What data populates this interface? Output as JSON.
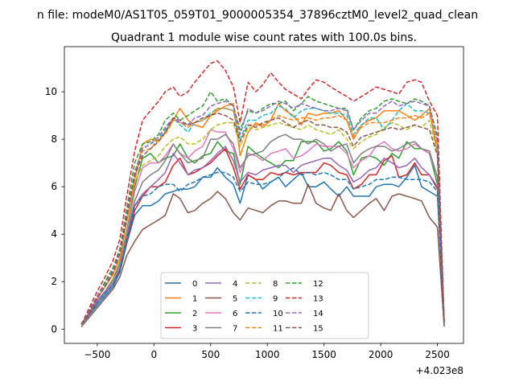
{
  "chart_data": {
    "type": "line",
    "suptitle": "n file: modeM0/AS1T05_059T01_9000005354_37896cztM0_level2_quad_clean",
    "title": "Quadrant 1 module wise count rates with 100.0s bins.",
    "xlabel": "",
    "ylabel": "",
    "x_offset_label": "+4.023e8",
    "xlim": [
      -790,
      2730
    ],
    "ylim": [
      -0.6,
      11.9
    ],
    "xticks": [
      -500,
      0,
      500,
      1000,
      1500,
      2000,
      2500
    ],
    "xtick_labels": [
      "−500",
      "0",
      "500",
      "1000",
      "1500",
      "2000",
      "2500"
    ],
    "yticks": [
      0,
      2,
      4,
      6,
      8,
      10
    ],
    "ytick_labels": [
      "0",
      "2",
      "4",
      "6",
      "8",
      "10"
    ],
    "grid": false,
    "legend_position": "lower-center",
    "legend_columns": 4,
    "x": [
      -640,
      -570,
      -500,
      -430,
      -360,
      -300,
      -240,
      -170,
      -100,
      -30,
      40,
      100,
      170,
      230,
      300,
      360,
      430,
      500,
      560,
      630,
      700,
      760,
      830,
      900,
      960,
      1030,
      1100,
      1160,
      1230,
      1300,
      1360,
      1430,
      1500,
      1560,
      1630,
      1700,
      1760,
      1830,
      1900,
      1960,
      2030,
      2100,
      2160,
      2230,
      2300,
      2360,
      2430,
      2500,
      2560
    ],
    "series": [
      {
        "name": "0",
        "color": "#1f77b4",
        "dash": "solid",
        "values": [
          0.2,
          0.6,
          1.0,
          1.4,
          1.8,
          2.4,
          3.6,
          4.8,
          5.2,
          5.2,
          5.4,
          5.7,
          5.8,
          5.9,
          5.9,
          6.0,
          6.4,
          6.4,
          6.8,
          6.4,
          6.1,
          5.3,
          6.5,
          6.3,
          5.9,
          6.2,
          6.4,
          6.0,
          6.3,
          6.6,
          6.0,
          6.0,
          6.2,
          5.9,
          5.6,
          6.0,
          5.6,
          5.6,
          5.6,
          6.0,
          6.1,
          6.1,
          6.0,
          6.4,
          6.9,
          6.0,
          5.8,
          5.6,
          0.3
        ]
      },
      {
        "name": "1",
        "color": "#ff7f0e",
        "dash": "solid",
        "values": [
          0.2,
          0.7,
          1.3,
          1.8,
          2.3,
          3.0,
          4.5,
          6.3,
          7.8,
          8.0,
          7.9,
          8.3,
          8.8,
          9.3,
          8.8,
          8.6,
          8.5,
          9.0,
          9.2,
          9.4,
          9.5,
          7.3,
          8.3,
          8.7,
          8.5,
          8.8,
          9.5,
          9.2,
          9.0,
          8.6,
          9.1,
          9.0,
          9.1,
          9.1,
          9.2,
          8.8,
          8.0,
          8.6,
          8.8,
          8.9,
          9.2,
          9.2,
          9.2,
          9.0,
          8.8,
          9.0,
          9.3,
          7.4,
          0.3
        ]
      },
      {
        "name": "2",
        "color": "#2ca02c",
        "dash": "solid",
        "values": [
          0.2,
          0.6,
          1.2,
          1.6,
          2.1,
          2.8,
          4.1,
          6.0,
          7.2,
          7.4,
          7.0,
          7.2,
          7.3,
          7.8,
          7.2,
          7.0,
          7.3,
          7.4,
          7.9,
          7.5,
          7.4,
          6.1,
          7.7,
          7.4,
          7.2,
          7.0,
          6.8,
          7.1,
          7.1,
          7.9,
          7.9,
          7.9,
          7.5,
          7.6,
          7.9,
          7.5,
          6.5,
          7.2,
          7.3,
          7.2,
          6.9,
          7.4,
          7.2,
          7.9,
          7.6,
          7.6,
          7.4,
          6.1,
          0.2
        ]
      },
      {
        "name": "3",
        "color": "#d62728",
        "dash": "solid",
        "values": [
          0.2,
          0.6,
          1.1,
          1.5,
          1.9,
          2.5,
          3.7,
          5.0,
          5.6,
          6.0,
          6.0,
          6.2,
          6.9,
          7.2,
          6.5,
          6.6,
          6.8,
          7.0,
          7.3,
          7.6,
          6.8,
          5.9,
          6.5,
          6.3,
          6.3,
          6.6,
          6.5,
          6.6,
          6.5,
          6.6,
          6.6,
          6.6,
          7.0,
          6.9,
          6.6,
          6.5,
          5.9,
          6.1,
          6.5,
          6.5,
          7.1,
          7.3,
          6.4,
          6.5,
          7.0,
          6.5,
          6.5,
          5.9,
          0.3
        ]
      },
      {
        "name": "4",
        "color": "#9467bd",
        "dash": "solid",
        "values": [
          0.2,
          0.7,
          1.2,
          1.6,
          2.0,
          2.6,
          3.8,
          5.2,
          5.7,
          6.0,
          6.3,
          6.6,
          7.4,
          7.0,
          6.5,
          6.7,
          6.8,
          7.1,
          7.4,
          7.7,
          7.1,
          6.2,
          6.6,
          6.5,
          6.7,
          6.8,
          6.9,
          6.9,
          6.6,
          6.9,
          7.0,
          7.1,
          7.2,
          7.2,
          6.9,
          6.7,
          6.2,
          6.4,
          6.7,
          6.8,
          7.2,
          7.0,
          6.8,
          6.9,
          7.2,
          6.8,
          6.5,
          6.0,
          0.3
        ]
      },
      {
        "name": "5",
        "color": "#8c564b",
        "dash": "solid",
        "values": [
          0.1,
          0.5,
          0.9,
          1.3,
          1.7,
          2.2,
          3.1,
          3.7,
          4.2,
          4.4,
          4.6,
          4.8,
          5.7,
          5.5,
          4.9,
          5.0,
          5.3,
          5.5,
          5.8,
          5.5,
          4.9,
          4.6,
          5.1,
          5.0,
          4.9,
          5.2,
          5.4,
          5.4,
          5.3,
          5.3,
          6.1,
          5.3,
          5.1,
          5.0,
          5.7,
          5.0,
          4.7,
          5.0,
          5.3,
          5.5,
          5.0,
          5.6,
          5.7,
          5.6,
          5.5,
          5.4,
          4.7,
          4.3,
          0.1
        ]
      },
      {
        "name": "6",
        "color": "#e377c2",
        "dash": "solid",
        "values": [
          0.2,
          0.6,
          1.1,
          1.5,
          2.0,
          2.7,
          4.0,
          5.8,
          6.8,
          7.0,
          7.0,
          7.3,
          7.8,
          7.4,
          7.2,
          7.5,
          7.7,
          8.4,
          8.3,
          8.3,
          7.6,
          6.6,
          7.4,
          7.3,
          7.1,
          7.4,
          7.5,
          7.6,
          7.2,
          7.3,
          7.5,
          7.8,
          7.7,
          7.7,
          7.7,
          7.4,
          6.8,
          7.1,
          7.3,
          7.7,
          7.9,
          7.6,
          7.5,
          7.6,
          7.8,
          7.6,
          7.4,
          6.4,
          0.3
        ]
      },
      {
        "name": "7",
        "color": "#7f7f7f",
        "dash": "solid",
        "values": [
          0.2,
          0.6,
          1.1,
          1.5,
          1.9,
          2.6,
          3.9,
          5.4,
          6.2,
          6.5,
          6.7,
          7.1,
          7.8,
          7.4,
          7.0,
          7.1,
          7.2,
          8.0,
          8.0,
          8.2,
          7.8,
          6.8,
          7.3,
          7.4,
          7.5,
          7.9,
          8.1,
          8.2,
          8.0,
          8.0,
          7.8,
          8.0,
          7.8,
          7.5,
          7.7,
          7.8,
          7.0,
          7.4,
          7.6,
          7.7,
          7.7,
          7.5,
          7.6,
          7.8,
          7.9,
          7.6,
          7.5,
          6.4,
          0.3
        ]
      },
      {
        "name": "8",
        "color": "#bcbd22",
        "dash": "dashed",
        "values": [
          0.2,
          0.7,
          1.3,
          1.8,
          2.3,
          3.0,
          4.5,
          6.2,
          6.9,
          7.1,
          7.3,
          7.7,
          8.0,
          8.1,
          7.8,
          7.8,
          8.0,
          8.4,
          8.6,
          8.7,
          8.7,
          7.7,
          8.5,
          8.4,
          8.5,
          8.6,
          8.7,
          8.6,
          8.5,
          8.4,
          8.6,
          8.4,
          8.3,
          8.2,
          8.4,
          8.0,
          7.6,
          7.9,
          8.1,
          8.2,
          8.5,
          8.7,
          8.6,
          8.4,
          8.6,
          8.5,
          8.8,
          7.4,
          0.3
        ]
      },
      {
        "name": "9",
        "color": "#17becf",
        "dash": "dashed",
        "values": [
          0.2,
          0.8,
          1.4,
          1.9,
          2.5,
          3.2,
          4.8,
          6.6,
          7.6,
          7.8,
          8.0,
          8.4,
          8.9,
          8.6,
          8.3,
          8.7,
          8.8,
          9.1,
          9.3,
          9.3,
          9.2,
          8.0,
          8.8,
          8.8,
          9.0,
          9.1,
          9.4,
          9.3,
          8.9,
          9.2,
          9.3,
          9.3,
          9.2,
          9.1,
          9.1,
          9.0,
          8.2,
          8.6,
          8.9,
          8.9,
          8.4,
          8.8,
          9.2,
          9.5,
          9.2,
          9.2,
          9.1,
          7.6,
          0.3
        ]
      },
      {
        "name": "10",
        "color": "#1f77b4",
        "dash": "dashed",
        "values": [
          0.2,
          0.6,
          1.1,
          1.5,
          1.9,
          2.5,
          3.8,
          5.2,
          5.6,
          5.7,
          6.0,
          6.1,
          6.1,
          5.8,
          6.1,
          6.2,
          6.4,
          6.5,
          6.6,
          6.6,
          6.4,
          5.8,
          6.2,
          6.1,
          6.1,
          6.2,
          6.4,
          6.6,
          6.8,
          6.5,
          6.6,
          6.5,
          6.6,
          6.5,
          6.3,
          6.3,
          5.9,
          6.0,
          6.1,
          6.3,
          6.3,
          6.4,
          6.4,
          6.3,
          6.3,
          6.3,
          6.2,
          5.8,
          0.2
        ]
      },
      {
        "name": "11",
        "color": "#ff7f0e",
        "dash": "dashed",
        "values": [
          0.2,
          0.7,
          1.3,
          1.8,
          2.3,
          3.0,
          4.6,
          6.3,
          7.5,
          7.6,
          8.0,
          8.2,
          8.8,
          8.7,
          8.5,
          8.7,
          8.8,
          9.0,
          9.3,
          9.3,
          9.2,
          7.9,
          8.6,
          8.6,
          8.6,
          8.8,
          9.0,
          8.9,
          8.8,
          8.9,
          8.9,
          8.8,
          8.9,
          8.9,
          9.0,
          8.8,
          8.1,
          8.5,
          8.7,
          8.7,
          8.7,
          8.8,
          8.9,
          8.9,
          9.0,
          8.9,
          9.1,
          7.7,
          0.3
        ]
      },
      {
        "name": "12",
        "color": "#2ca02c",
        "dash": "dashed",
        "values": [
          0.2,
          0.8,
          1.4,
          2.0,
          2.6,
          3.4,
          5.1,
          7.0,
          7.8,
          7.9,
          8.2,
          8.8,
          9.1,
          8.8,
          9.0,
          9.2,
          9.4,
          10.0,
          9.6,
          9.7,
          9.4,
          8.4,
          9.2,
          9.1,
          9.3,
          9.5,
          9.5,
          9.6,
          9.2,
          9.5,
          9.8,
          9.6,
          9.5,
          9.4,
          9.3,
          9.3,
          8.4,
          8.9,
          9.2,
          9.3,
          9.6,
          9.7,
          9.6,
          9.5,
          9.7,
          9.6,
          9.4,
          8.1,
          0.3
        ]
      },
      {
        "name": "13",
        "color": "#d62728",
        "dash": "dashed",
        "values": [
          0.2,
          0.9,
          1.6,
          2.2,
          2.9,
          3.8,
          5.6,
          7.5,
          8.8,
          9.2,
          9.6,
          10.0,
          10.2,
          9.8,
          10.0,
          10.4,
          10.8,
          11.2,
          11.3,
          10.9,
          10.2,
          8.7,
          10.4,
          10.0,
          10.3,
          10.8,
          10.4,
          10.1,
          9.9,
          9.7,
          10.1,
          10.5,
          10.4,
          10.2,
          10.0,
          9.8,
          9.6,
          9.8,
          10.0,
          10.2,
          10.1,
          10.0,
          9.9,
          10.4,
          10.5,
          10.4,
          9.6,
          9.0,
          0.3
        ]
      },
      {
        "name": "14",
        "color": "#9467bd",
        "dash": "dashed",
        "values": [
          0.2,
          0.8,
          1.4,
          1.9,
          2.5,
          3.3,
          4.9,
          6.6,
          7.6,
          7.8,
          8.1,
          8.5,
          8.9,
          8.7,
          8.6,
          8.9,
          9.0,
          9.4,
          9.5,
          9.6,
          9.4,
          8.2,
          9.3,
          9.1,
          9.2,
          9.4,
          9.6,
          9.5,
          9.3,
          9.5,
          9.4,
          9.3,
          9.2,
          9.2,
          9.3,
          9.2,
          8.4,
          8.8,
          9.1,
          9.1,
          9.4,
          9.6,
          9.4,
          9.5,
          9.6,
          9.5,
          9.4,
          7.9,
          0.3
        ]
      },
      {
        "name": "15",
        "color": "#8c564b",
        "dash": "dashed",
        "values": [
          0.2,
          0.7,
          1.3,
          1.8,
          2.4,
          3.2,
          4.7,
          6.5,
          7.3,
          7.6,
          7.9,
          8.3,
          8.9,
          8.8,
          8.6,
          8.7,
          8.9,
          9.0,
          9.1,
          9.0,
          8.8,
          7.9,
          8.6,
          8.5,
          8.7,
          8.8,
          8.9,
          8.7,
          8.5,
          8.7,
          8.8,
          8.6,
          8.6,
          8.5,
          8.5,
          8.3,
          7.7,
          8.1,
          8.2,
          8.3,
          8.4,
          8.5,
          8.4,
          8.5,
          8.6,
          8.5,
          8.4,
          7.3,
          0.3
        ]
      }
    ]
  }
}
